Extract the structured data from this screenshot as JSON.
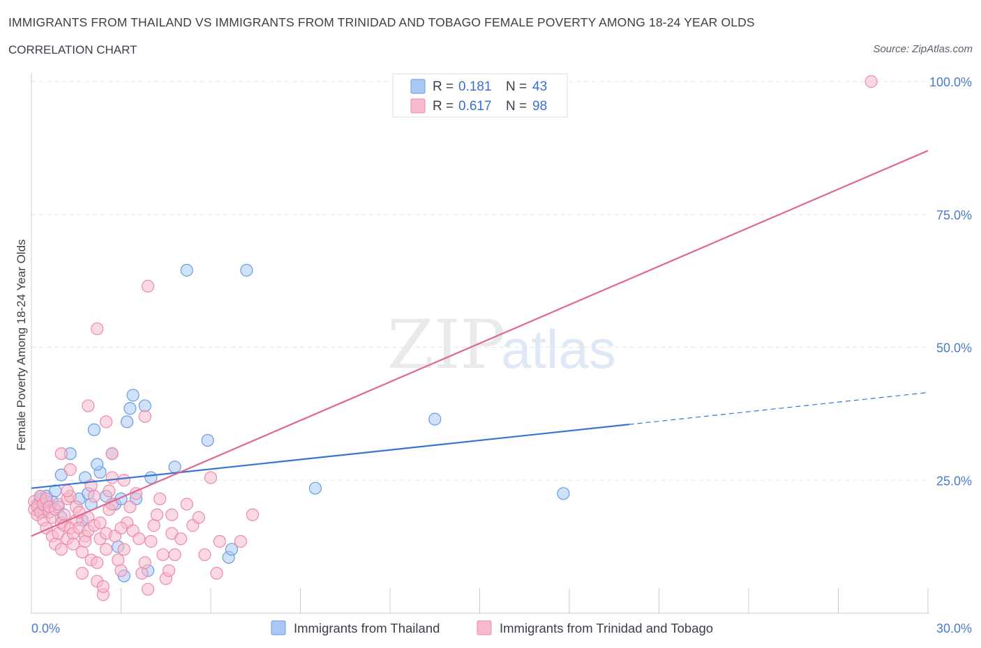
{
  "header": {
    "title": "IMMIGRANTS FROM THAILAND VS IMMIGRANTS FROM TRINIDAD AND TOBAGO FEMALE POVERTY AMONG 18-24 YEAR OLDS",
    "subtitle": "CORRELATION CHART",
    "source": "Source: ZipAtlas.com"
  },
  "watermark": {
    "zip": "ZIP",
    "atlas": "atlas"
  },
  "legend": {
    "r_label": "R =",
    "n_label": "N =",
    "rows": [
      {
        "r": "0.181",
        "n": "43"
      },
      {
        "r": "0.617",
        "n": "98"
      }
    ]
  },
  "colors": {
    "thailand_fill": "#a9c8f5",
    "thailand_stroke": "#6a9be0",
    "thailand_line": "#3575d3",
    "trinidad_fill": "#f7b9cc",
    "trinidad_stroke": "#ec8aaa",
    "trinidad_line": "#e06690",
    "tick": "#4a7ac9"
  },
  "chart_data": {
    "type": "scatter",
    "ylabel": "Female Poverty Among 18-24 Year Olds",
    "xlim": [
      0,
      30
    ],
    "ylim": [
      0,
      100
    ],
    "x_tick_labels": [
      "0.0%",
      "30.0%"
    ],
    "y_ticks": [
      25,
      50,
      75,
      100
    ],
    "y_tick_labels": [
      "25.0%",
      "50.0%",
      "75.0%",
      "100.0%"
    ],
    "grid": true,
    "legend_position": "top-center",
    "series": [
      {
        "name": "Immigrants from Thailand",
        "r": 0.181,
        "n": 43,
        "trendline": {
          "x0": 0,
          "y0": 23.5,
          "x1": 20,
          "y1": 35.5,
          "dashed_to_x": 30,
          "dashed_to_y": 41.5
        },
        "points": [
          [
            0.2,
            20.5
          ],
          [
            0.3,
            21.5
          ],
          [
            0.4,
            19
          ],
          [
            0.5,
            21
          ],
          [
            0.6,
            20
          ],
          [
            0.7,
            21
          ],
          [
            0.5,
            22
          ],
          [
            0.3,
            22
          ],
          [
            0.8,
            23
          ],
          [
            0.9,
            20
          ],
          [
            1.0,
            18
          ],
          [
            1.0,
            26
          ],
          [
            1.3,
            30
          ],
          [
            1.6,
            21.5
          ],
          [
            1.7,
            17.5
          ],
          [
            1.9,
            22.5
          ],
          [
            2.0,
            20.5
          ],
          [
            1.8,
            25.5
          ],
          [
            2.3,
            26.5
          ],
          [
            2.2,
            28
          ],
          [
            2.1,
            34.5
          ],
          [
            2.5,
            22
          ],
          [
            2.7,
            30
          ],
          [
            2.8,
            20.5
          ],
          [
            2.9,
            12.5
          ],
          [
            3.0,
            21.5
          ],
          [
            3.1,
            7
          ],
          [
            3.2,
            36
          ],
          [
            3.3,
            38.5
          ],
          [
            3.4,
            41
          ],
          [
            3.5,
            21.5
          ],
          [
            3.8,
            39
          ],
          [
            3.9,
            8
          ],
          [
            4.0,
            25.5
          ],
          [
            4.8,
            27.5
          ],
          [
            5.2,
            64.5
          ],
          [
            5.9,
            32.5
          ],
          [
            6.6,
            10.5
          ],
          [
            6.7,
            12
          ],
          [
            7.2,
            64.5
          ],
          [
            9.5,
            23.5
          ],
          [
            13.5,
            36.5
          ],
          [
            17.8,
            22.5
          ]
        ]
      },
      {
        "name": "Immigrants from Trinidad and Tobago",
        "r": 0.617,
        "n": 98,
        "trendline": {
          "x0": 0,
          "y0": 14.5,
          "x1": 30,
          "y1": 87
        },
        "points": [
          [
            0.1,
            21
          ],
          [
            0.1,
            19.5
          ],
          [
            0.2,
            20
          ],
          [
            0.2,
            18.5
          ],
          [
            0.3,
            22
          ],
          [
            0.3,
            19
          ],
          [
            0.4,
            20.5
          ],
          [
            0.4,
            17.5
          ],
          [
            0.5,
            16
          ],
          [
            0.5,
            21.5
          ],
          [
            0.6,
            19
          ],
          [
            0.6,
            20
          ],
          [
            0.7,
            18
          ],
          [
            0.7,
            14.5
          ],
          [
            0.8,
            13
          ],
          [
            0.8,
            19.5
          ],
          [
            0.9,
            15
          ],
          [
            0.9,
            20.5
          ],
          [
            1.0,
            17
          ],
          [
            1.0,
            12
          ],
          [
            1.1,
            18.5
          ],
          [
            1.1,
            16.5
          ],
          [
            1.2,
            21.5
          ],
          [
            1.2,
            14
          ],
          [
            1.3,
            16
          ],
          [
            1.3,
            22
          ],
          [
            1.4,
            15
          ],
          [
            1.4,
            13
          ],
          [
            1.5,
            17.5
          ],
          [
            1.5,
            20
          ],
          [
            1.6,
            19
          ],
          [
            1.6,
            16
          ],
          [
            1.7,
            7.5
          ],
          [
            1.7,
            11.5
          ],
          [
            1.8,
            14.5
          ],
          [
            1.8,
            13.5
          ],
          [
            1.9,
            15.5
          ],
          [
            1.9,
            18
          ],
          [
            2.0,
            10
          ],
          [
            2.0,
            24
          ],
          [
            2.1,
            22
          ],
          [
            2.1,
            16.5
          ],
          [
            2.2,
            6
          ],
          [
            2.2,
            9.5
          ],
          [
            2.3,
            14
          ],
          [
            2.3,
            17
          ],
          [
            2.4,
            3.5
          ],
          [
            2.4,
            5
          ],
          [
            2.5,
            12
          ],
          [
            2.5,
            15
          ],
          [
            2.6,
            19.5
          ],
          [
            2.6,
            23
          ],
          [
            2.7,
            20.5
          ],
          [
            2.7,
            25.5
          ],
          [
            2.8,
            14.5
          ],
          [
            2.9,
            10
          ],
          [
            3.0,
            8
          ],
          [
            3.1,
            12
          ],
          [
            3.2,
            17
          ],
          [
            3.3,
            20
          ],
          [
            3.4,
            15.5
          ],
          [
            3.5,
            22.5
          ],
          [
            3.6,
            14
          ],
          [
            3.7,
            7.5
          ],
          [
            3.8,
            9.5
          ],
          [
            3.9,
            4.5
          ],
          [
            4.0,
            13.5
          ],
          [
            4.1,
            16.5
          ],
          [
            4.2,
            18.5
          ],
          [
            4.3,
            21.5
          ],
          [
            4.4,
            11
          ],
          [
            4.5,
            6.5
          ],
          [
            4.6,
            8
          ],
          [
            4.7,
            15
          ],
          [
            4.8,
            11
          ],
          [
            5.0,
            14
          ],
          [
            5.2,
            20.5
          ],
          [
            5.4,
            16.5
          ],
          [
            5.6,
            18
          ],
          [
            5.8,
            11
          ],
          [
            6.0,
            25.5
          ],
          [
            6.2,
            7.5
          ],
          [
            6.3,
            13.5
          ],
          [
            1.0,
            30
          ],
          [
            1.2,
            23
          ],
          [
            1.3,
            27
          ],
          [
            1.9,
            39
          ],
          [
            2.2,
            53.5
          ],
          [
            2.5,
            36
          ],
          [
            2.7,
            30
          ],
          [
            3.0,
            16
          ],
          [
            3.1,
            25
          ],
          [
            3.8,
            37
          ],
          [
            3.9,
            61.5
          ],
          [
            4.7,
            18.5
          ],
          [
            7.0,
            13.5
          ],
          [
            7.4,
            18.5
          ],
          [
            28.1,
            100
          ]
        ]
      }
    ]
  },
  "bottom_legend": [
    {
      "label": "Immigrants from Thailand"
    },
    {
      "label": "Immigrants from Trinidad and Tobago"
    }
  ]
}
